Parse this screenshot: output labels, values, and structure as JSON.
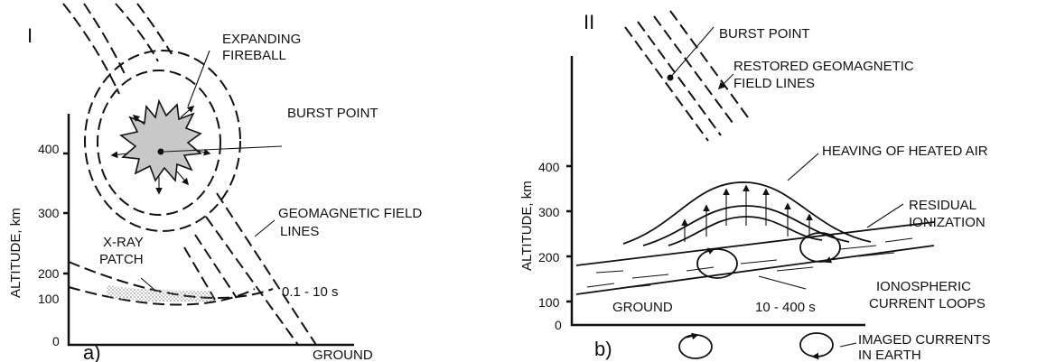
{
  "panel_a": {
    "roman": "I",
    "letter": "a)",
    "y_axis_label": "ALTITUDE, km",
    "ticks": [
      "400",
      "300",
      "200",
      "100",
      "0"
    ],
    "label_fireball_1": "EXPANDING",
    "label_fireball_2": "FIREBALL",
    "label_burst": "BURST POINT",
    "label_field_1": "GEOMAGNETIC FIELD",
    "label_field_2": "LINES",
    "label_xray_1": "X-RAY",
    "label_xray_2": "PATCH",
    "label_time": "0.1 - 10 s",
    "label_ground": "GROUND"
  },
  "panel_b": {
    "roman": "II",
    "letter": "b)",
    "y_axis_label": "ALTITUDE, km",
    "ticks": [
      "400",
      "300",
      "200",
      "100",
      "0"
    ],
    "label_burst": "BURST POINT",
    "label_restored_1": "RESTORED GEOMAGNETIC",
    "label_restored_2": "FIELD LINES",
    "label_heaving": "HEAVING OF HEATED AIR",
    "label_residual_1": "RESIDUAL",
    "label_residual_2": "IONIZATION",
    "label_iono_1": "IONOSPHERIC",
    "label_iono_2": "CURRENT LOOPS",
    "label_ground": "GROUND",
    "label_time": "10 - 400 s",
    "label_imaged_1": "IMAGED CURRENTS",
    "label_imaged_2": "IN EARTH"
  }
}
